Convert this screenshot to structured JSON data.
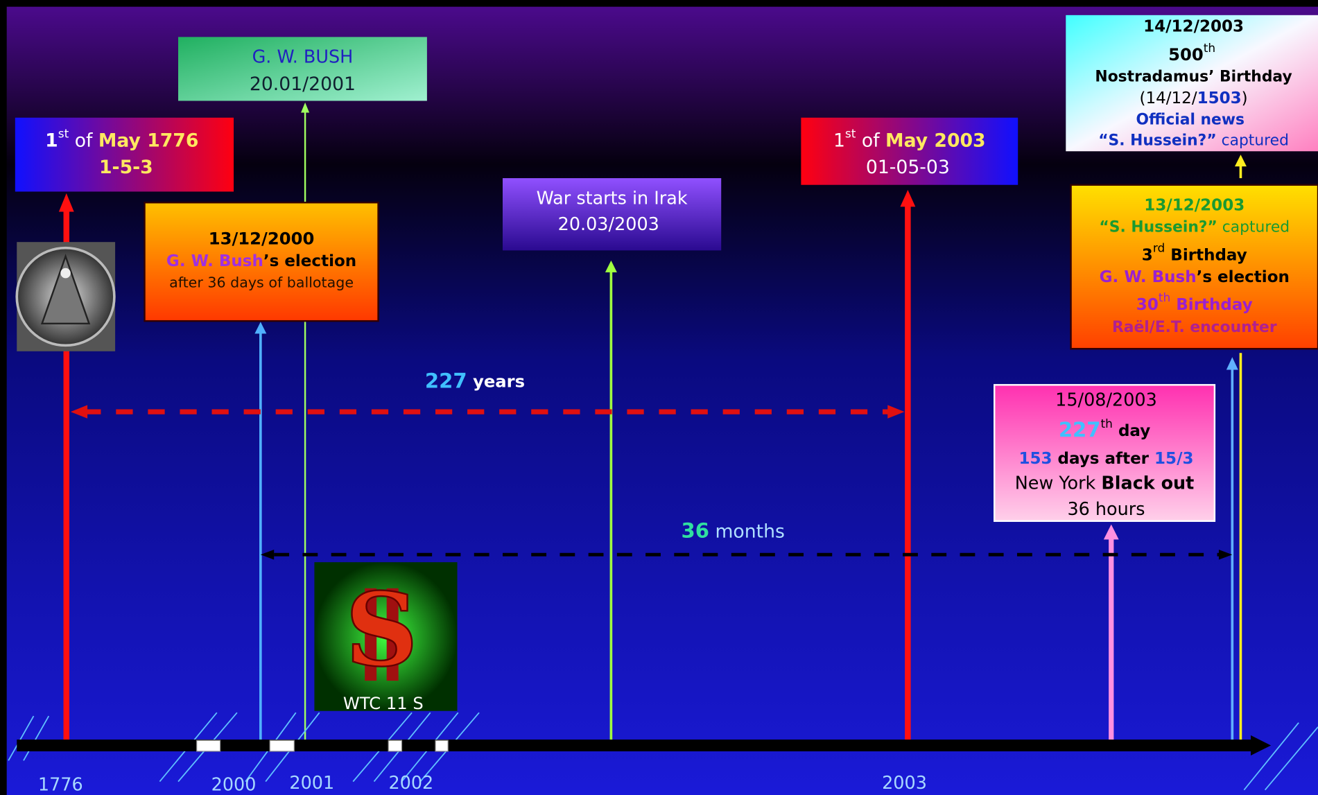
{
  "boxes": [
    {
      "lines": [
        [
          "1",
          "st",
          " of ",
          "May 1776"
        ],
        [
          "1-5-3"
        ]
      ]
    },
    {
      "lines": [
        [
          "G. W. BUSH"
        ],
        [
          "20.01/2001"
        ]
      ]
    },
    {
      "lines": [
        [
          "13/12/2000"
        ],
        [
          "G. W. Bush",
          "’s election"
        ],
        [
          "after 36 days of ballotage"
        ]
      ]
    },
    {
      "lines": [
        [
          "War starts in Irak"
        ],
        [
          "20.03/2003"
        ]
      ]
    },
    {
      "lines": [
        [
          "1",
          "st",
          " of ",
          "May 2003"
        ],
        [
          "01-05-03"
        ]
      ]
    },
    {
      "lines": [
        [
          "14/12/2003"
        ],
        [
          "500",
          "th"
        ],
        [
          "Nostradamus’ Birthday"
        ],
        [
          "(14/12/",
          "1503",
          ")"
        ],
        [
          "Official news"
        ],
        [
          "“S. Hussein?”",
          " captured"
        ]
      ]
    },
    {
      "lines": [
        [
          "13/12/2003"
        ],
        [
          "“S. Hussein?”",
          " captured"
        ],
        [
          "3",
          "rd",
          " Birthday"
        ],
        [
          "G. W. Bush",
          "’s election"
        ],
        [
          "30",
          "th",
          " Birthday"
        ],
        [
          "Raël/E.T. encounter"
        ]
      ]
    },
    {
      "lines": [
        [
          "15/08/2003"
        ],
        [
          "227",
          "th",
          " day"
        ],
        [
          "153",
          " days after ",
          "15/3"
        ],
        [
          "New York ",
          "Black out"
        ],
        [
          "36 hours"
        ]
      ]
    }
  ],
  "spans": [
    [
      "227",
      " years"
    ],
    [
      "36",
      " months"
    ]
  ],
  "image_caption": "WTC 11 S",
  "axis_labels": [
    "1776",
    "2000",
    "2001",
    "2002",
    "2003"
  ]
}
